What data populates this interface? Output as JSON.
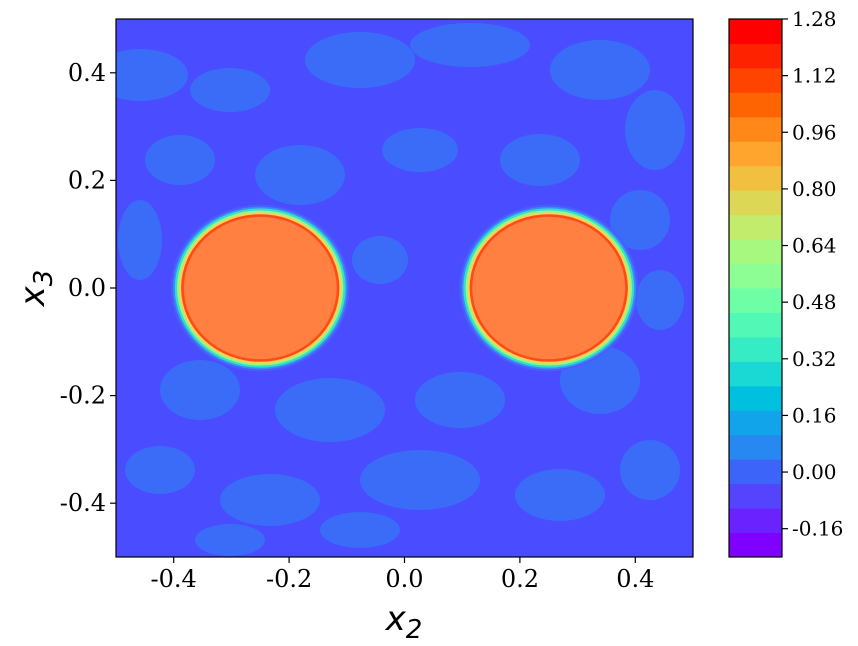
{
  "chart_data": {
    "type": "heatmap",
    "title": "",
    "xlabel": "x",
    "xlabel_sub": "2",
    "ylabel": "x",
    "ylabel_sub": "3",
    "xlim": [
      -0.5,
      0.5
    ],
    "ylim": [
      -0.5,
      0.5
    ],
    "x_ticks": [
      {
        "value": -0.4,
        "label": "-0.4"
      },
      {
        "value": -0.2,
        "label": "-0.2"
      },
      {
        "value": 0.0,
        "label": "0.0"
      },
      {
        "value": 0.2,
        "label": "0.2"
      },
      {
        "value": 0.4,
        "label": "0.4"
      }
    ],
    "y_ticks": [
      {
        "value": 0.4,
        "label": "0.4"
      },
      {
        "value": 0.2,
        "label": "0.2"
      },
      {
        "value": 0.0,
        "label": "0.0"
      },
      {
        "value": -0.2,
        "label": "-0.2"
      },
      {
        "value": -0.4,
        "label": "-0.4"
      }
    ],
    "background_value": 0.0,
    "features": [
      {
        "name": "left-disk",
        "center": [
          -0.25,
          0.0
        ],
        "radius": 0.155,
        "plateau_value": 1.0
      },
      {
        "name": "right-disk",
        "center": [
          0.25,
          0.0
        ],
        "radius": 0.155,
        "plateau_value": 1.0
      }
    ],
    "colorbar": {
      "min": -0.24,
      "max": 1.28,
      "levels": [
        "#8000ff",
        "#6a22fe",
        "#5444fd",
        "#3c64f9",
        "#2888f2",
        "#12a4eb",
        "#00c0e0",
        "#1ad8d4",
        "#36ecc5",
        "#52f8b6",
        "#6efea5",
        "#8cfe93",
        "#a6f87f",
        "#c2ec6b",
        "#dcd856",
        "#f2c040",
        "#ffa42c",
        "#ff8818",
        "#ff6402",
        "#ff4400",
        "#ff2200",
        "#ff0000"
      ],
      "ticks": [
        {
          "value": 1.28,
          "label": "1.28"
        },
        {
          "value": 1.12,
          "label": "1.12"
        },
        {
          "value": 0.96,
          "label": "0.96"
        },
        {
          "value": 0.8,
          "label": "0.80"
        },
        {
          "value": 0.64,
          "label": "0.64"
        },
        {
          "value": 0.48,
          "label": "0.48"
        },
        {
          "value": 0.32,
          "label": "0.32"
        },
        {
          "value": 0.16,
          "label": "0.16"
        },
        {
          "value": 0.0,
          "label": "0.00"
        },
        {
          "value": -0.16,
          "label": "-0.16"
        }
      ]
    },
    "colors": {
      "background": "#4a4cff",
      "background_patch": "#3a70f7",
      "ring_cyan": "#2fe0d0",
      "ring_green": "#9ef47f",
      "ring_red": "#ff4a1a",
      "plateau": "#ff8040"
    },
    "grid": false
  }
}
